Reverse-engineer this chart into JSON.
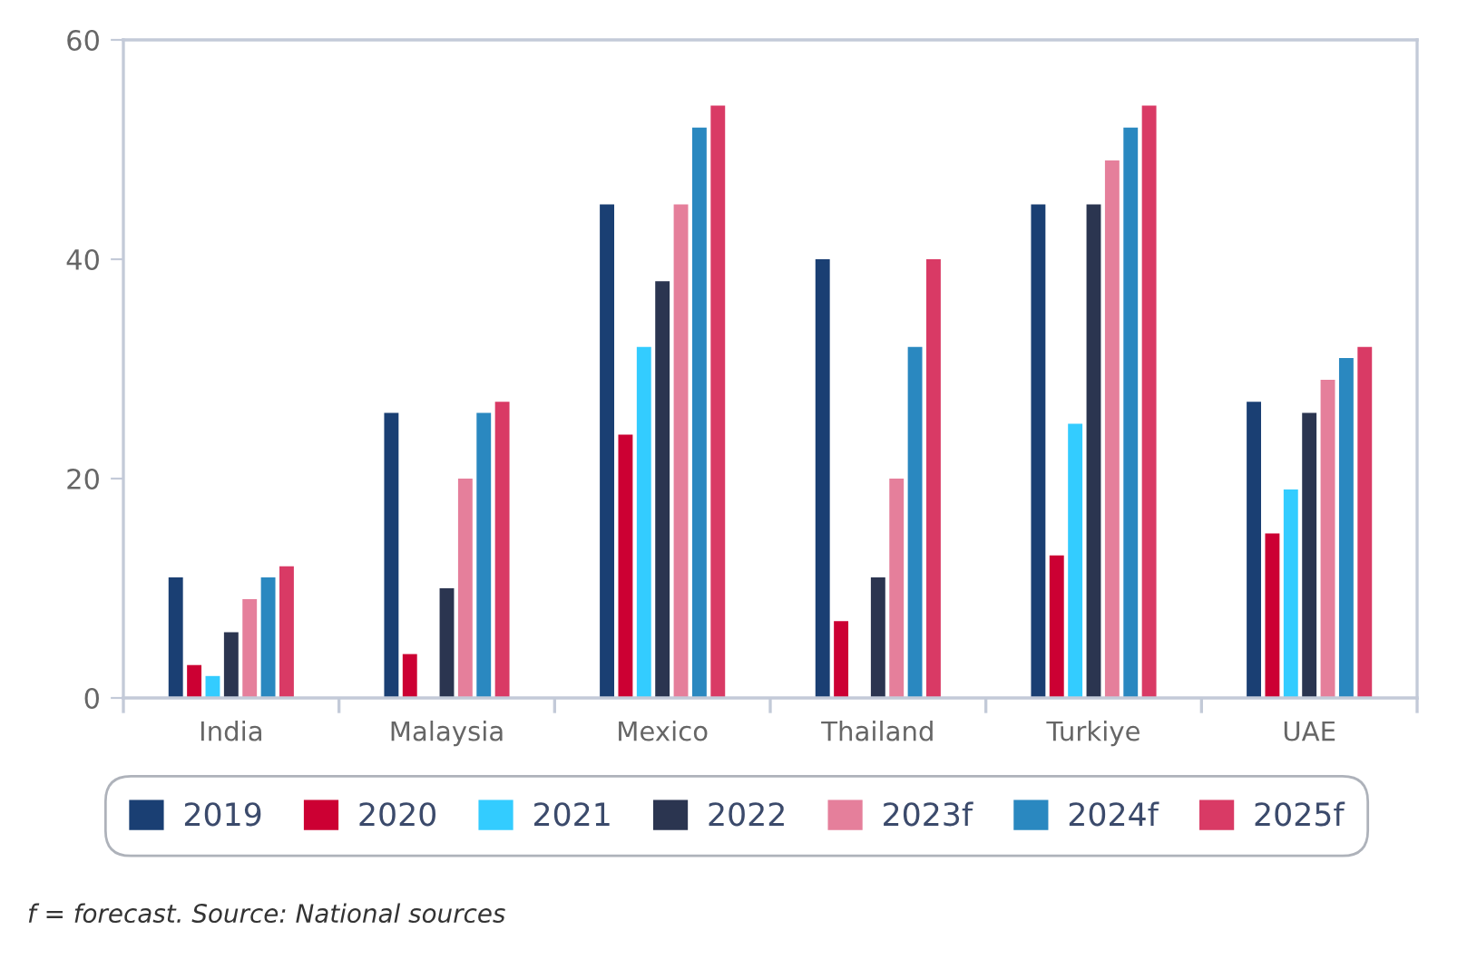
{
  "chart_data": {
    "type": "bar",
    "categories": [
      "India",
      "Malaysia",
      "Mexico",
      "Thailand",
      "Turkiye",
      "UAE"
    ],
    "series": [
      {
        "name": "2019",
        "color": "#1a3f73",
        "values": [
          11,
          26,
          45,
          40,
          45,
          27
        ]
      },
      {
        "name": "2020",
        "color": "#cc0033",
        "values": [
          3,
          4,
          24,
          7,
          13,
          15
        ]
      },
      {
        "name": "2021",
        "color": "#33ccff",
        "values": [
          2,
          null,
          32,
          null,
          25,
          19
        ]
      },
      {
        "name": "2022",
        "color": "#2b3550",
        "values": [
          6,
          10,
          38,
          11,
          45,
          26
        ]
      },
      {
        "name": "2023f",
        "color": "#e57f9b",
        "values": [
          9,
          20,
          45,
          20,
          49,
          29
        ]
      },
      {
        "name": "2024f",
        "color": "#2a88c0",
        "values": [
          11,
          26,
          52,
          32,
          52,
          31
        ]
      },
      {
        "name": "2025f",
        "color": "#d93a65",
        "values": [
          12,
          27,
          54,
          40,
          54,
          32
        ]
      }
    ],
    "ylim": [
      0,
      60
    ],
    "yticks": [
      0,
      20,
      40,
      60
    ],
    "legend": "bottom",
    "annotations": [
      "f = forecast. Source: National sources"
    ]
  }
}
